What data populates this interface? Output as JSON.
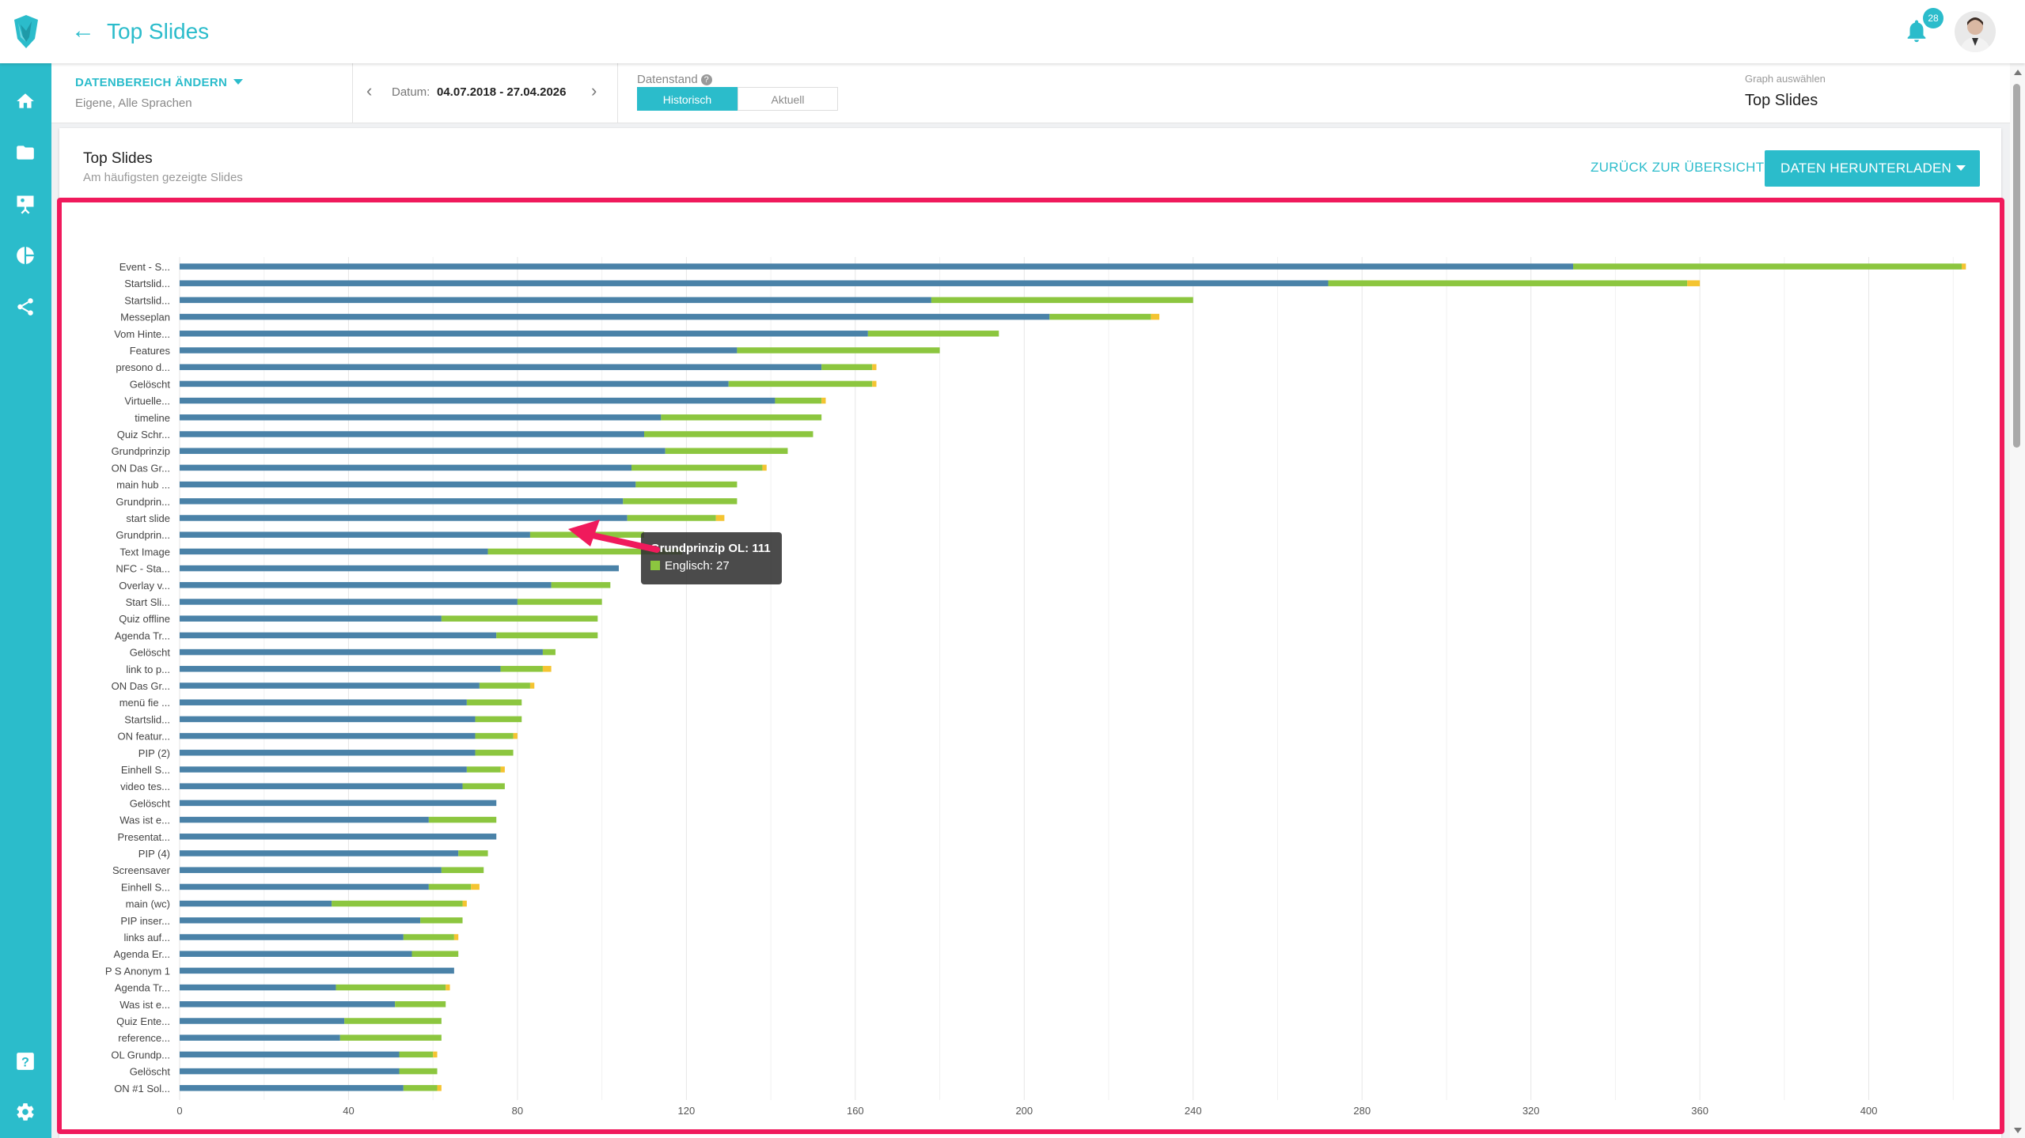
{
  "app": {
    "title": "Top Slides",
    "notification_count": "28"
  },
  "filter": {
    "range_title": "DATENBEREICH ÄNDERN",
    "range_sub": "Eigene, Alle Sprachen",
    "date_label": "Datum:",
    "date_value": "04.07.2018 - 27.04.2026",
    "datenstand_label": "Datenstand",
    "segment_active": "Historisch",
    "segment_inactive": "Aktuell",
    "graph_label": "Graph auswählen",
    "graph_value": "Top Slides"
  },
  "card": {
    "title": "Top Slides",
    "subtitle": "Am häufigsten gezeigte Slides",
    "back_label": "ZURÜCK ZUR ÜBERSICHT",
    "download_label": "DATEN HERUNTERLADEN"
  },
  "tooltip": {
    "title": "Grundprinzip OL: 111",
    "line": "Englisch: 27"
  },
  "colors": {
    "accent": "#2bbccb",
    "series_blue": "#4a82a8",
    "series_green": "#8cc63f",
    "series_yellow": "#f4c431",
    "highlight": "#f01a5c"
  },
  "icons": [
    "logo-icon",
    "back-arrow-icon",
    "bell-icon",
    "home-icon",
    "folder-icon",
    "presentation-icon",
    "pie-chart-icon",
    "share-icon",
    "help-icon",
    "gear-icon"
  ],
  "chart_data": {
    "type": "bar",
    "orientation": "horizontal",
    "stacked": true,
    "xlim": [
      0,
      425
    ],
    "xticks": [
      0,
      40,
      80,
      120,
      160,
      200,
      240,
      280,
      320,
      360,
      400
    ],
    "grid": true,
    "categories": [
      "Event - S...",
      "Startslid...",
      "Startslid...",
      "Messeplan",
      "Vom Hinte...",
      "Features",
      "presono d...",
      "Gelöscht",
      "Virtuelle...",
      "timeline",
      "Quiz Schr...",
      "Grundprinzip",
      "ON Das Gr...",
      "main hub ...",
      "Grundprin...",
      "start slide",
      "Grundprin...",
      "Text Image",
      "NFC - Sta...",
      "Overlay v...",
      "Start Sli...",
      "Quiz offline",
      "Agenda Tr...",
      "Gelöscht",
      "link to p...",
      "ON Das Gr...",
      "menü fie ...",
      "Startslid...",
      "ON featur...",
      "PIP (2)",
      "Einhell S...",
      "video tes...",
      "Gelöscht",
      "Was ist e...",
      "Presentat...",
      "PIP (4)",
      "Screensaver",
      "Einhell S...",
      "main (wc)",
      "PIP inser...",
      "links auf...",
      "Agenda Er...",
      "P S Anonym 1",
      "Agenda Tr...",
      "Was ist e...",
      "Quiz Ente...",
      "reference...",
      "OL Grundp...",
      "Gelöscht",
      "ON #1 Sol..."
    ],
    "series": [
      {
        "color": "#4a82a8",
        "values": [
          330,
          272,
          178,
          206,
          163,
          132,
          152,
          130,
          141,
          114,
          110,
          115,
          107,
          108,
          105,
          106,
          83,
          73,
          104,
          88,
          80,
          62,
          75,
          86,
          76,
          71,
          68,
          70,
          70,
          70,
          68,
          67,
          75,
          59,
          75,
          66,
          62,
          59,
          36,
          57,
          53,
          55,
          65,
          37,
          51,
          39,
          38,
          52,
          52,
          53
        ]
      },
      {
        "color": "#8cc63f",
        "values": [
          92,
          85,
          62,
          24,
          31,
          48,
          12,
          34,
          11,
          38,
          40,
          29,
          31,
          24,
          27,
          21,
          27,
          46,
          0,
          14,
          20,
          37,
          24,
          3,
          10,
          12,
          13,
          11,
          9,
          9,
          8,
          10,
          0,
          16,
          0,
          7,
          10,
          10,
          31,
          10,
          12,
          11,
          0,
          26,
          12,
          23,
          24,
          8,
          9,
          8
        ]
      },
      {
        "color": "#f4c431",
        "values": [
          1,
          3,
          0,
          2,
          0,
          0,
          1,
          1,
          1,
          0,
          0,
          0,
          1,
          0,
          0,
          2,
          0,
          0,
          0,
          0,
          0,
          0,
          0,
          0,
          2,
          1,
          0,
          0,
          1,
          0,
          1,
          0,
          0,
          0,
          0,
          0,
          0,
          2,
          1,
          0,
          1,
          0,
          0,
          1,
          0,
          0,
          0,
          1,
          0,
          1
        ]
      }
    ]
  }
}
